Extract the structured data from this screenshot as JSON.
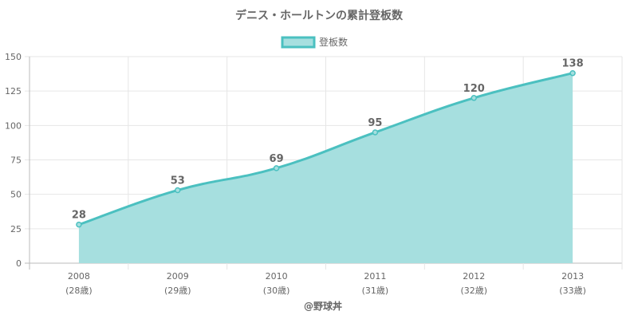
{
  "chart_data": {
    "type": "area",
    "title": "デニス・ホールトンの累計登板数",
    "legend": {
      "label": "登板数",
      "position": "top"
    },
    "categories": [
      "2008",
      "2009",
      "2010",
      "2011",
      "2012",
      "2013"
    ],
    "sub_labels": [
      "(28歳)",
      "(29歳)",
      "(30歳)",
      "(31歳)",
      "(32歳)",
      "(33歳)"
    ],
    "series": [
      {
        "name": "登板数",
        "values": [
          28,
          53,
          69,
          95,
          120,
          138
        ]
      }
    ],
    "ylim": [
      0,
      150
    ],
    "yticks": [
      0,
      25,
      50,
      75,
      100,
      125,
      150
    ],
    "grid": true,
    "colors": {
      "line": "#4bc0c0",
      "fill": "#a6dfdf"
    }
  },
  "credit": "@野球丼"
}
